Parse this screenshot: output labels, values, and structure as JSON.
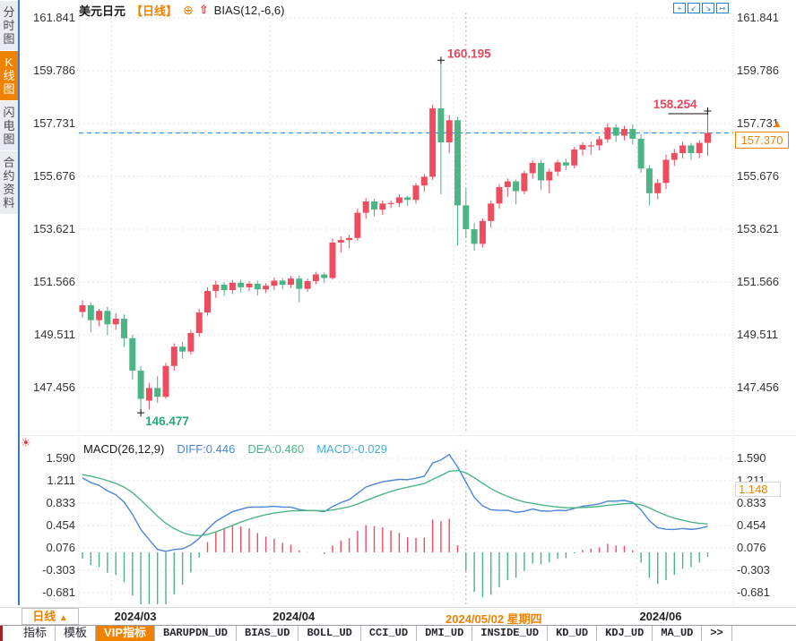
{
  "toolbar": {
    "symbol": "美元日元",
    "period_tag": "【日线】",
    "add_indicator_glyph": "⊕",
    "arrow_glyph": "⇧",
    "indicator": "BIAS(12,-6,6)",
    "icons": [
      {
        "name": "pan-icon",
        "glyph": "+"
      },
      {
        "name": "scale-left-icon",
        "glyph": "↙"
      },
      {
        "name": "scale-right-icon",
        "glyph": "↘"
      },
      {
        "name": "exit-chart-icon",
        "glyph": "↦"
      }
    ]
  },
  "sidebar": {
    "items": [
      {
        "name": "sidebar-item-time-chart",
        "label": "分时图",
        "active": false
      },
      {
        "name": "sidebar-item-kline-chart",
        "label": "K线图",
        "active": true
      },
      {
        "name": "sidebar-item-flash-chart",
        "label": "闪电图",
        "active": false
      },
      {
        "name": "sidebar-item-contract-info",
        "label": "合约资料",
        "active": false
      }
    ]
  },
  "colors": {
    "up": "#ee4d5f",
    "down": "#4cb485",
    "accent": "#f08200",
    "diff_line": "#4a87d8",
    "dea_line": "#4db584",
    "price_line": "#1f8fff",
    "grid": "#e4e4ea",
    "crosshair": "#aaaaaa",
    "annotation_red": "#e8455a",
    "annotation_green": "#2aa876",
    "axis_text": "#333333"
  },
  "chart_data": {
    "type": "candlestick+macd",
    "title": "美元日元 日线",
    "main": {
      "y_ticks": [
        "161.841",
        "159.786",
        "157.731",
        "155.676",
        "153.621",
        "151.566",
        "149.511",
        "147.456"
      ],
      "y_top_value": 161.841,
      "y_step": 2.055,
      "month_marks": [
        {
          "label": "2024/03",
          "index": 4
        },
        {
          "label": "2024/04",
          "index": 23
        },
        {
          "label": "2024/05",
          "index": 45,
          "covered": true
        },
        {
          "label": "2024/06",
          "index": 67
        }
      ],
      "ohlc": [
        [
          150.4,
          150.85,
          150.18,
          150.66
        ],
        [
          150.66,
          150.78,
          149.62,
          150.08
        ],
        [
          150.08,
          150.52,
          149.84,
          150.44
        ],
        [
          150.44,
          150.6,
          149.5,
          149.92
        ],
        [
          149.92,
          150.35,
          149.7,
          150.14
        ],
        [
          150.14,
          150.3,
          149.05,
          149.38
        ],
        [
          149.38,
          149.52,
          147.77,
          148.12
        ],
        [
          148.12,
          148.3,
          146.477,
          147.02
        ],
        [
          146.95,
          147.65,
          146.6,
          147.44
        ],
        [
          147.44,
          147.9,
          146.86,
          147.1
        ],
        [
          147.1,
          148.42,
          147.02,
          148.3
        ],
        [
          148.3,
          149.18,
          148.12,
          149.05
        ],
        [
          149.05,
          149.24,
          148.58,
          148.86
        ],
        [
          148.86,
          149.7,
          148.74,
          149.58
        ],
        [
          149.58,
          150.52,
          149.42,
          150.38
        ],
        [
          150.38,
          151.36,
          150.26,
          151.22
        ],
        [
          151.22,
          151.62,
          150.94,
          151.46
        ],
        [
          151.46,
          151.56,
          151.02,
          151.25
        ],
        [
          151.25,
          151.64,
          151.1,
          151.54
        ],
        [
          151.54,
          151.66,
          151.16,
          151.36
        ],
        [
          151.36,
          151.6,
          151.2,
          151.5
        ],
        [
          151.5,
          151.62,
          151.04,
          151.28
        ],
        [
          151.28,
          151.52,
          151.14,
          151.42
        ],
        [
          151.42,
          151.74,
          151.24,
          151.62
        ],
        [
          151.62,
          151.72,
          151.28,
          151.46
        ],
        [
          151.46,
          151.8,
          151.34,
          151.7
        ],
        [
          151.7,
          151.82,
          150.78,
          151.3
        ],
        [
          151.3,
          151.7,
          151.18,
          151.6
        ],
        [
          151.6,
          151.96,
          151.48,
          151.86
        ],
        [
          151.86,
          151.94,
          151.52,
          151.72
        ],
        [
          151.72,
          153.26,
          151.66,
          153.1
        ],
        [
          153.1,
          153.34,
          152.72,
          153.2
        ],
        [
          153.2,
          153.4,
          152.88,
          153.28
        ],
        [
          153.28,
          154.42,
          153.18,
          154.26
        ],
        [
          154.26,
          154.84,
          154.02,
          154.7
        ],
        [
          154.7,
          154.8,
          154.12,
          154.38
        ],
        [
          154.38,
          154.74,
          154.18,
          154.62
        ],
        [
          154.64,
          154.74,
          154.44,
          154.64
        ],
        [
          154.64,
          154.98,
          154.48,
          154.86
        ],
        [
          154.86,
          154.92,
          154.52,
          154.76
        ],
        [
          154.76,
          155.42,
          154.62,
          155.32
        ],
        [
          155.32,
          155.76,
          155.08,
          155.66
        ],
        [
          155.66,
          158.46,
          155.54,
          158.32
        ],
        [
          158.32,
          160.195,
          154.97,
          157.0
        ],
        [
          157.0,
          158.06,
          156.58,
          157.86
        ],
        [
          157.86,
          157.99,
          152.98,
          154.55
        ],
        [
          154.55,
          155.22,
          153.28,
          153.62
        ],
        [
          153.62,
          153.86,
          152.78,
          153.05
        ],
        [
          153.05,
          154.04,
          152.9,
          153.94
        ],
        [
          153.94,
          154.74,
          153.68,
          154.62
        ],
        [
          154.62,
          155.38,
          154.42,
          155.26
        ],
        [
          155.26,
          155.6,
          154.88,
          155.48
        ],
        [
          155.48,
          155.56,
          154.58,
          155.1
        ],
        [
          155.1,
          155.9,
          154.98,
          155.8
        ],
        [
          155.8,
          156.3,
          155.58,
          156.2
        ],
        [
          156.2,
          156.32,
          155.14,
          155.52
        ],
        [
          155.52,
          155.98,
          155.02,
          155.86
        ],
        [
          155.86,
          156.32,
          155.68,
          156.22
        ],
        [
          156.22,
          156.36,
          155.92,
          156.1
        ],
        [
          156.1,
          156.82,
          155.98,
          156.72
        ],
        [
          156.72,
          157.0,
          156.48,
          156.9
        ],
        [
          156.88,
          157.02,
          156.52,
          156.88
        ],
        [
          156.88,
          157.24,
          156.68,
          157.12
        ],
        [
          157.12,
          157.74,
          156.98,
          157.58
        ],
        [
          157.58,
          157.72,
          157.02,
          157.26
        ],
        [
          157.26,
          157.64,
          157.08,
          157.52
        ],
        [
          157.52,
          157.7,
          156.92,
          157.14
        ],
        [
          157.14,
          157.32,
          155.82,
          155.98
        ],
        [
          155.98,
          156.12,
          154.55,
          155.02
        ],
        [
          155.02,
          155.58,
          154.78,
          155.42
        ],
        [
          155.42,
          156.52,
          155.18,
          156.32
        ],
        [
          156.32,
          156.74,
          156.08,
          156.58
        ],
        [
          156.58,
          157.02,
          156.38,
          156.88
        ],
        [
          156.88,
          156.98,
          156.32,
          156.58
        ],
        [
          156.58,
          157.08,
          156.38,
          156.98
        ],
        [
          156.98,
          158.254,
          156.48,
          157.37
        ]
      ]
    },
    "macd": {
      "label": "MACD(26,12,9)",
      "diff_label": "DIFF:0.446",
      "dea_label": "DEA:0.460",
      "macd_label": "MACD:-0.029",
      "y_ticks": [
        "1.590",
        "1.211",
        "0.833",
        "0.454",
        "0.076",
        "-0.303",
        "-0.681"
      ],
      "y_top_value": 1.59,
      "y_step": 0.3787,
      "warmup_closes": [
        141.95,
        142.4,
        143.3,
        144.6,
        145.15,
        145.8,
        145.95,
        146.1,
        147.0,
        147.9,
        148.1,
        147.95,
        147.6,
        147.9,
        148.15,
        148.4,
        147.55,
        147.1,
        146.7,
        147.2,
        147.9,
        148.35,
        148.7,
        148.95,
        149.3,
        149.45,
        149.95,
        150.2,
        150.6,
        150.35,
        150.1,
        150.25,
        150.5,
        150.45
      ]
    },
    "annotations": {
      "high": {
        "label": "160.195",
        "index": 43
      },
      "recent_high": {
        "label": "158.254",
        "index": 75
      },
      "low": {
        "label": "146.477",
        "index": 7
      },
      "current_price": {
        "label": "157.370",
        "value": 157.37,
        "arrow_glyph": "▲"
      }
    },
    "crosshair": {
      "index": 46,
      "date_label": "2024/05/02 星期四",
      "macd_value_label": "1.148"
    }
  },
  "bottom": {
    "period_label": "日线",
    "period_arrow": "▲",
    "tabs": [
      {
        "name": "tab-indicators",
        "label": "指标",
        "mono": false,
        "active": false
      },
      {
        "name": "tab-templates",
        "label": "模板",
        "mono": false,
        "active": false
      },
      {
        "name": "tab-vip-indicators",
        "label": "VIP指标",
        "mono": false,
        "active": true
      },
      {
        "name": "tab-barupdn-ud",
        "label": "BARUPDN_UD",
        "mono": true,
        "active": false
      },
      {
        "name": "tab-bias-ud",
        "label": "BIAS_UD",
        "mono": true,
        "active": false
      },
      {
        "name": "tab-boll-ud",
        "label": "BOLL_UD",
        "mono": true,
        "active": false
      },
      {
        "name": "tab-cci-ud",
        "label": "CCI_UD",
        "mono": true,
        "active": false
      },
      {
        "name": "tab-dmi-ud",
        "label": "DMI_UD",
        "mono": true,
        "active": false
      },
      {
        "name": "tab-inside-ud",
        "label": "INSIDE_UD",
        "mono": true,
        "active": false
      },
      {
        "name": "tab-kd-ud",
        "label": "KD_UD",
        "mono": true,
        "active": false
      },
      {
        "name": "tab-kdj-ud",
        "label": "KDJ_UD",
        "mono": true,
        "active": false
      },
      {
        "name": "tab-ma-ud",
        "label": "MA_UD",
        "mono": true,
        "active": false
      },
      {
        "name": "tab-more",
        "label": ">>",
        "mono": true,
        "active": false
      }
    ]
  }
}
